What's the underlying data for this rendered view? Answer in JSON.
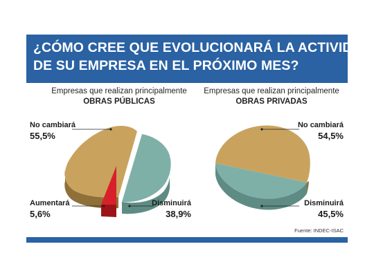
{
  "title": {
    "line1": "¿CÓMO CREE QUE EVOLUCIONARÁ LA ACTIVIDAD",
    "line2": "DE SU EMPRESA EN EL PRÓXIMO MES?"
  },
  "colors": {
    "banner": "#2a62a3",
    "no_cambiara": "#c9a35e",
    "disminuira": "#7fb0a8",
    "aumentara": "#d8202a"
  },
  "chart_data": [
    {
      "type": "pie",
      "title": "Empresas que realizan principalmente",
      "subtitle": "OBRAS PÚBLICAS",
      "slices": [
        {
          "label": "No cambiará",
          "value_text": "55,5%",
          "value": 55.5
        },
        {
          "label": "Disminuirá",
          "value_text": "38,9%",
          "value": 38.9
        },
        {
          "label": "Aumentará",
          "value_text": "5,6%",
          "value": 5.6
        }
      ]
    },
    {
      "type": "pie",
      "title": "Empresas que realizan principalmente",
      "subtitle": "OBRAS PRIVADAS",
      "slices": [
        {
          "label": "No cambiará",
          "value_text": "54,5%",
          "value": 54.5
        },
        {
          "label": "Disminuirá",
          "value_text": "45,5%",
          "value": 45.5
        }
      ]
    }
  ],
  "source": "Fuente: INDEC-ISAC"
}
